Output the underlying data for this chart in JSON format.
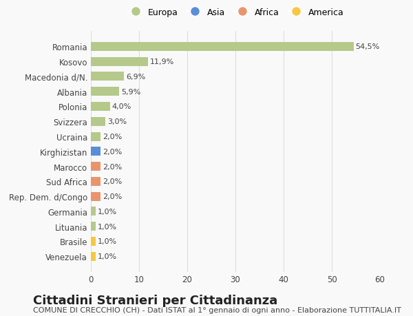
{
  "categories": [
    "Venezuela",
    "Brasile",
    "Lituania",
    "Germania",
    "Rep. Dem. d/Congo",
    "Sud Africa",
    "Marocco",
    "Kirghizistan",
    "Ucraina",
    "Svizzera",
    "Polonia",
    "Albania",
    "Macedonia d/N.",
    "Kosovo",
    "Romania"
  ],
  "values": [
    1.0,
    1.0,
    1.0,
    1.0,
    2.0,
    2.0,
    2.0,
    2.0,
    2.0,
    3.0,
    4.0,
    5.9,
    6.9,
    11.9,
    54.5
  ],
  "labels": [
    "1,0%",
    "1,0%",
    "1,0%",
    "1,0%",
    "2,0%",
    "2,0%",
    "2,0%",
    "2,0%",
    "2,0%",
    "3,0%",
    "4,0%",
    "5,9%",
    "6,9%",
    "11,9%",
    "54,5%"
  ],
  "colors": [
    "#f5c842",
    "#f5c842",
    "#b5c98a",
    "#b5c98a",
    "#e8956d",
    "#e8956d",
    "#e8956d",
    "#5b8dd9",
    "#b5c98a",
    "#b5c98a",
    "#b5c98a",
    "#b5c98a",
    "#b5c98a",
    "#b5c98a",
    "#b5c98a"
  ],
  "legend_labels": [
    "Europa",
    "Asia",
    "Africa",
    "America"
  ],
  "legend_colors": [
    "#b5c98a",
    "#5b8dd9",
    "#e8956d",
    "#f5c842"
  ],
  "title": "Cittadini Stranieri per Cittadinanza",
  "subtitle": "COMUNE DI CRECCHIO (CH) - Dati ISTAT al 1° gennaio di ogni anno - Elaborazione TUTTITALIA.IT",
  "xlim": [
    0,
    60
  ],
  "xticks": [
    0,
    10,
    20,
    30,
    40,
    50,
    60
  ],
  "background_color": "#f9f9f9",
  "bar_height": 0.6,
  "grid_color": "#dddddd",
  "title_fontsize": 13,
  "subtitle_fontsize": 8,
  "label_fontsize": 8,
  "tick_fontsize": 8.5,
  "legend_fontsize": 9
}
